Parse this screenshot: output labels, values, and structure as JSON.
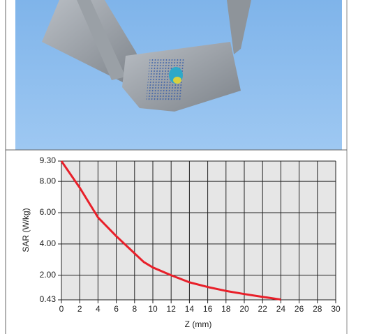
{
  "chart_data": {
    "type": "line",
    "x_label": "Z (mm)",
    "y_label": "SAR (W/kg)",
    "x": [
      0,
      2,
      4,
      6,
      8,
      9,
      10,
      12,
      14,
      16,
      18,
      20,
      22,
      24
    ],
    "series": [
      {
        "color": "#e8202a",
        "values": [
          9.3,
          7.6,
          5.7,
          4.5,
          3.4,
          2.85,
          2.5,
          2.0,
          1.55,
          1.25,
          1.0,
          0.8,
          0.62,
          0.45
        ]
      }
    ],
    "xlim": [
      0,
      30
    ],
    "xticks": [
      0,
      2,
      4,
      6,
      8,
      10,
      12,
      14,
      16,
      18,
      20,
      22,
      24,
      26,
      28,
      30
    ],
    "ylim": [
      0.43,
      9.3
    ],
    "yticks": [
      0.43,
      {
        "value": 2,
        "label": "2.00"
      },
      {
        "value": 4,
        "label": "4.00"
      },
      {
        "value": 6,
        "label": "6.00"
      },
      {
        "value": 8,
        "label": "8.00"
      },
      {
        "value": 9.3,
        "label": "9.30"
      }
    ],
    "grid": true
  }
}
